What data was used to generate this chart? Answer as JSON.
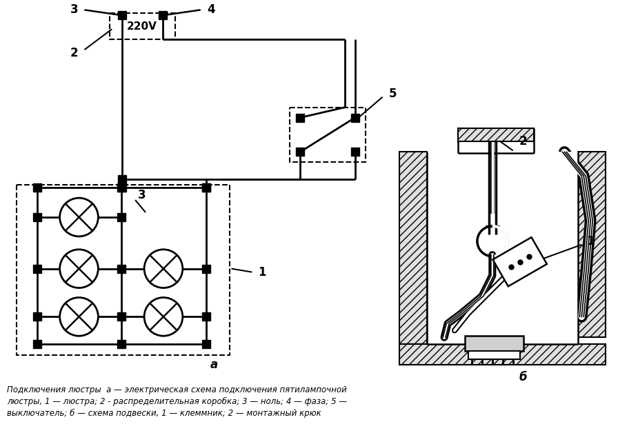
{
  "background_color": "#ffffff",
  "caption_line1": "Подключения люстры  а — электрическая схема подключения пятилампочной",
  "caption_line2": "люстры, 1 — люстра; 2 - распределительная коробка; 3 — ноль; 4 — фаза; 5 —",
  "caption_line3": "выключатель; б — схема подвески, 1 — клеммник; 2 — монтажный крюк",
  "label_a": "а",
  "label_b": "б",
  "voltage_label": "220V"
}
